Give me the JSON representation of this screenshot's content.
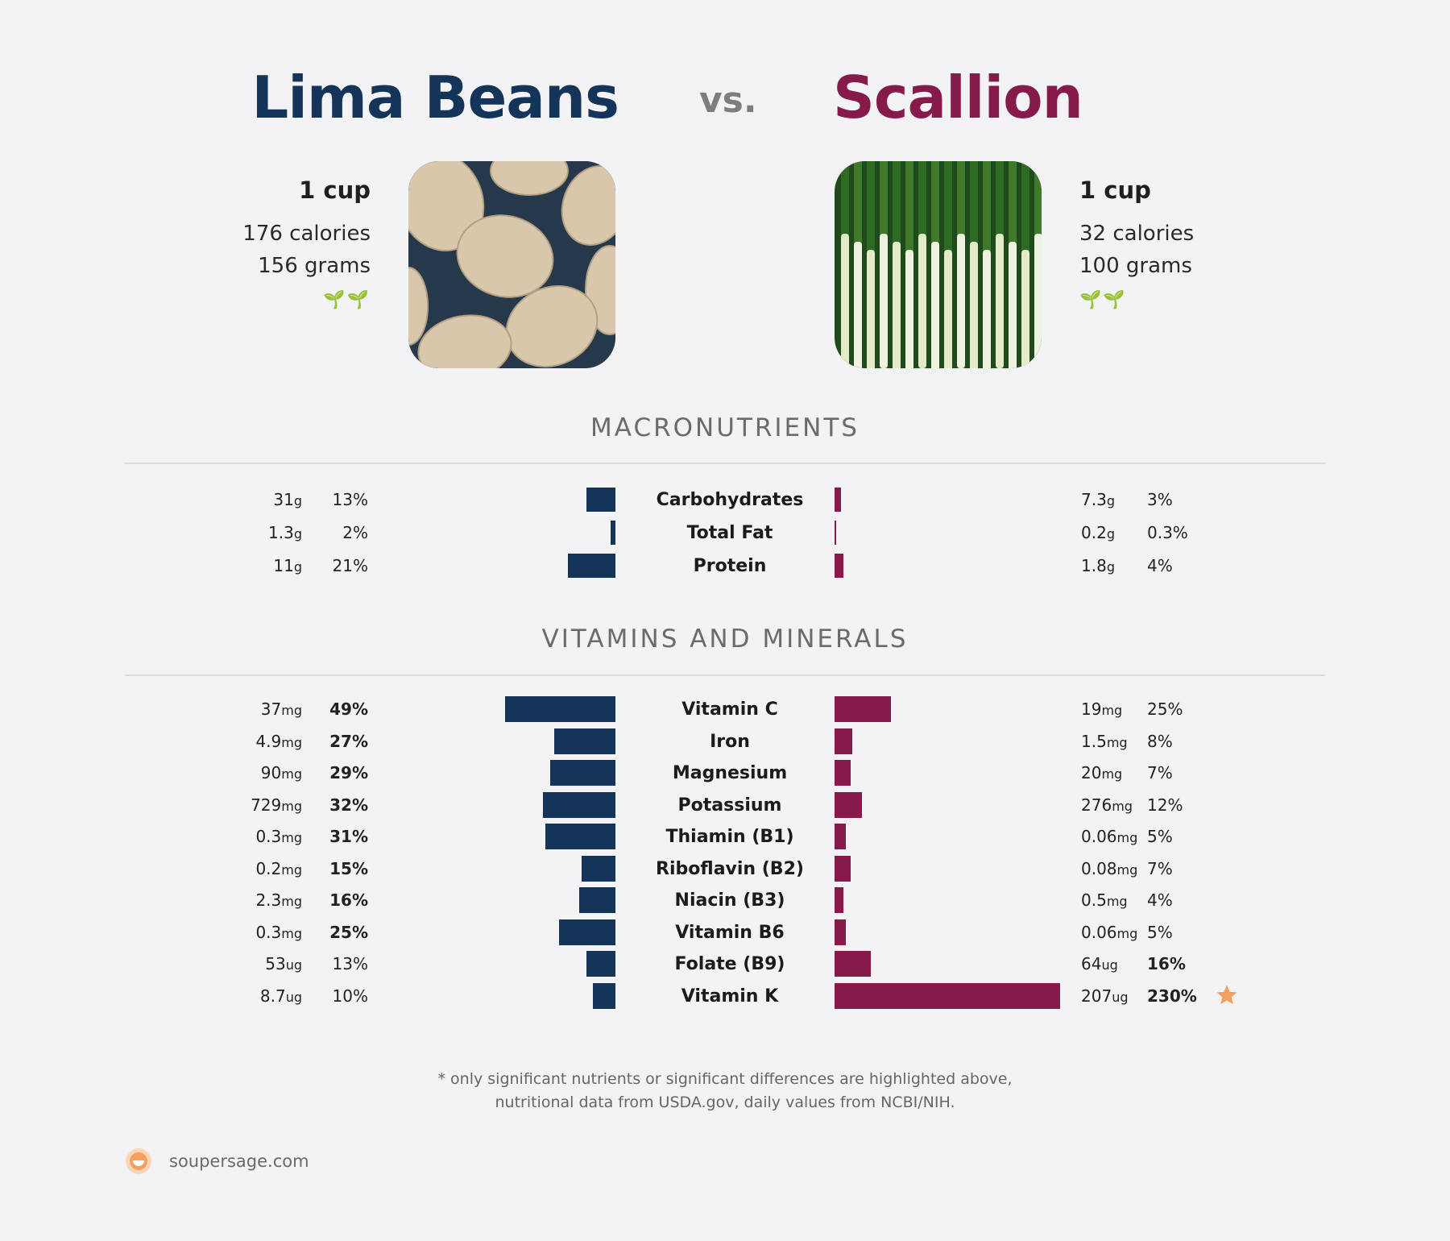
{
  "header": {
    "left_title": "Lima Beans",
    "vs": "vs.",
    "right_title": "Scallion"
  },
  "left_food": {
    "serving": "1 cup",
    "calories": "176 calories",
    "grams": "156 grams",
    "diet_icons": "🌱🌱"
  },
  "right_food": {
    "serving": "1 cup",
    "calories": "32 calories",
    "grams": "100 grams",
    "diet_icons": "🌱🌱"
  },
  "sections": {
    "macros": "MACRONUTRIENTS",
    "vitamins": "VITAMINS AND MINERALS"
  },
  "footnote": {
    "line1": "* only significant nutrients or significant differences are highlighted above,",
    "line2": "nutritional data from USDA.gov, daily values from NCBI/NIH."
  },
  "brand": {
    "site": "soupersage.com"
  },
  "colors": {
    "left": "#14345a",
    "right": "#861a4b",
    "star": "#f5a05e",
    "plant": "#1f8a2b"
  },
  "chart_data": [
    {
      "type": "bar",
      "section": "MACRONUTRIENTS",
      "categories": [
        "Carbohydrates",
        "Total Fat",
        "Protein"
      ],
      "series": [
        {
          "name": "Lima Beans",
          "values_pct": [
            13,
            2,
            21
          ],
          "amounts": [
            "31",
            "1.3",
            "11"
          ],
          "units": [
            "g",
            "g",
            "g"
          ],
          "pct_labels": [
            "13%",
            "2%",
            "21%"
          ],
          "bold": [
            false,
            false,
            false
          ]
        },
        {
          "name": "Scallion",
          "values_pct": [
            3,
            0.3,
            4
          ],
          "amounts": [
            "7.3",
            "0.2",
            "1.8"
          ],
          "units": [
            "g",
            "g",
            "g"
          ],
          "pct_labels": [
            "3%",
            "0.3%",
            "4%"
          ],
          "bold": [
            false,
            false,
            false
          ]
        }
      ]
    },
    {
      "type": "bar",
      "section": "VITAMINS AND MINERALS",
      "categories": [
        "Vitamin C",
        "Iron",
        "Magnesium",
        "Potassium",
        "Thiamin (B1)",
        "Riboflavin (B2)",
        "Niacin (B3)",
        "Vitamin B6",
        "Folate (B9)",
        "Vitamin K"
      ],
      "series": [
        {
          "name": "Lima Beans",
          "values_pct": [
            49,
            27,
            29,
            32,
            31,
            15,
            16,
            25,
            13,
            10
          ],
          "amounts": [
            "37",
            "4.9",
            "90",
            "729",
            "0.3",
            "0.2",
            "2.3",
            "0.3",
            "53",
            "8.7"
          ],
          "units": [
            "mg",
            "mg",
            "mg",
            "mg",
            "mg",
            "mg",
            "mg",
            "mg",
            "ug",
            "ug"
          ],
          "pct_labels": [
            "49%",
            "27%",
            "29%",
            "32%",
            "31%",
            "15%",
            "16%",
            "25%",
            "13%",
            "10%"
          ],
          "bold": [
            true,
            true,
            true,
            true,
            true,
            true,
            true,
            true,
            false,
            false
          ]
        },
        {
          "name": "Scallion",
          "values_pct": [
            25,
            8,
            7,
            12,
            5,
            7,
            4,
            5,
            16,
            230
          ],
          "amounts": [
            "19",
            "1.5",
            "20",
            "276",
            "0.06",
            "0.08",
            "0.5",
            "0.06",
            "64",
            "207"
          ],
          "units": [
            "mg",
            "mg",
            "mg",
            "mg",
            "mg",
            "mg",
            "mg",
            "mg",
            "ug",
            "ug"
          ],
          "pct_labels": [
            "25%",
            "8%",
            "7%",
            "12%",
            "5%",
            "7%",
            "4%",
            "5%",
            "16%",
            "230%"
          ],
          "bold": [
            false,
            false,
            false,
            false,
            false,
            false,
            false,
            false,
            true,
            true
          ],
          "starred": [
            false,
            false,
            false,
            false,
            false,
            false,
            false,
            false,
            false,
            true
          ]
        }
      ]
    }
  ]
}
